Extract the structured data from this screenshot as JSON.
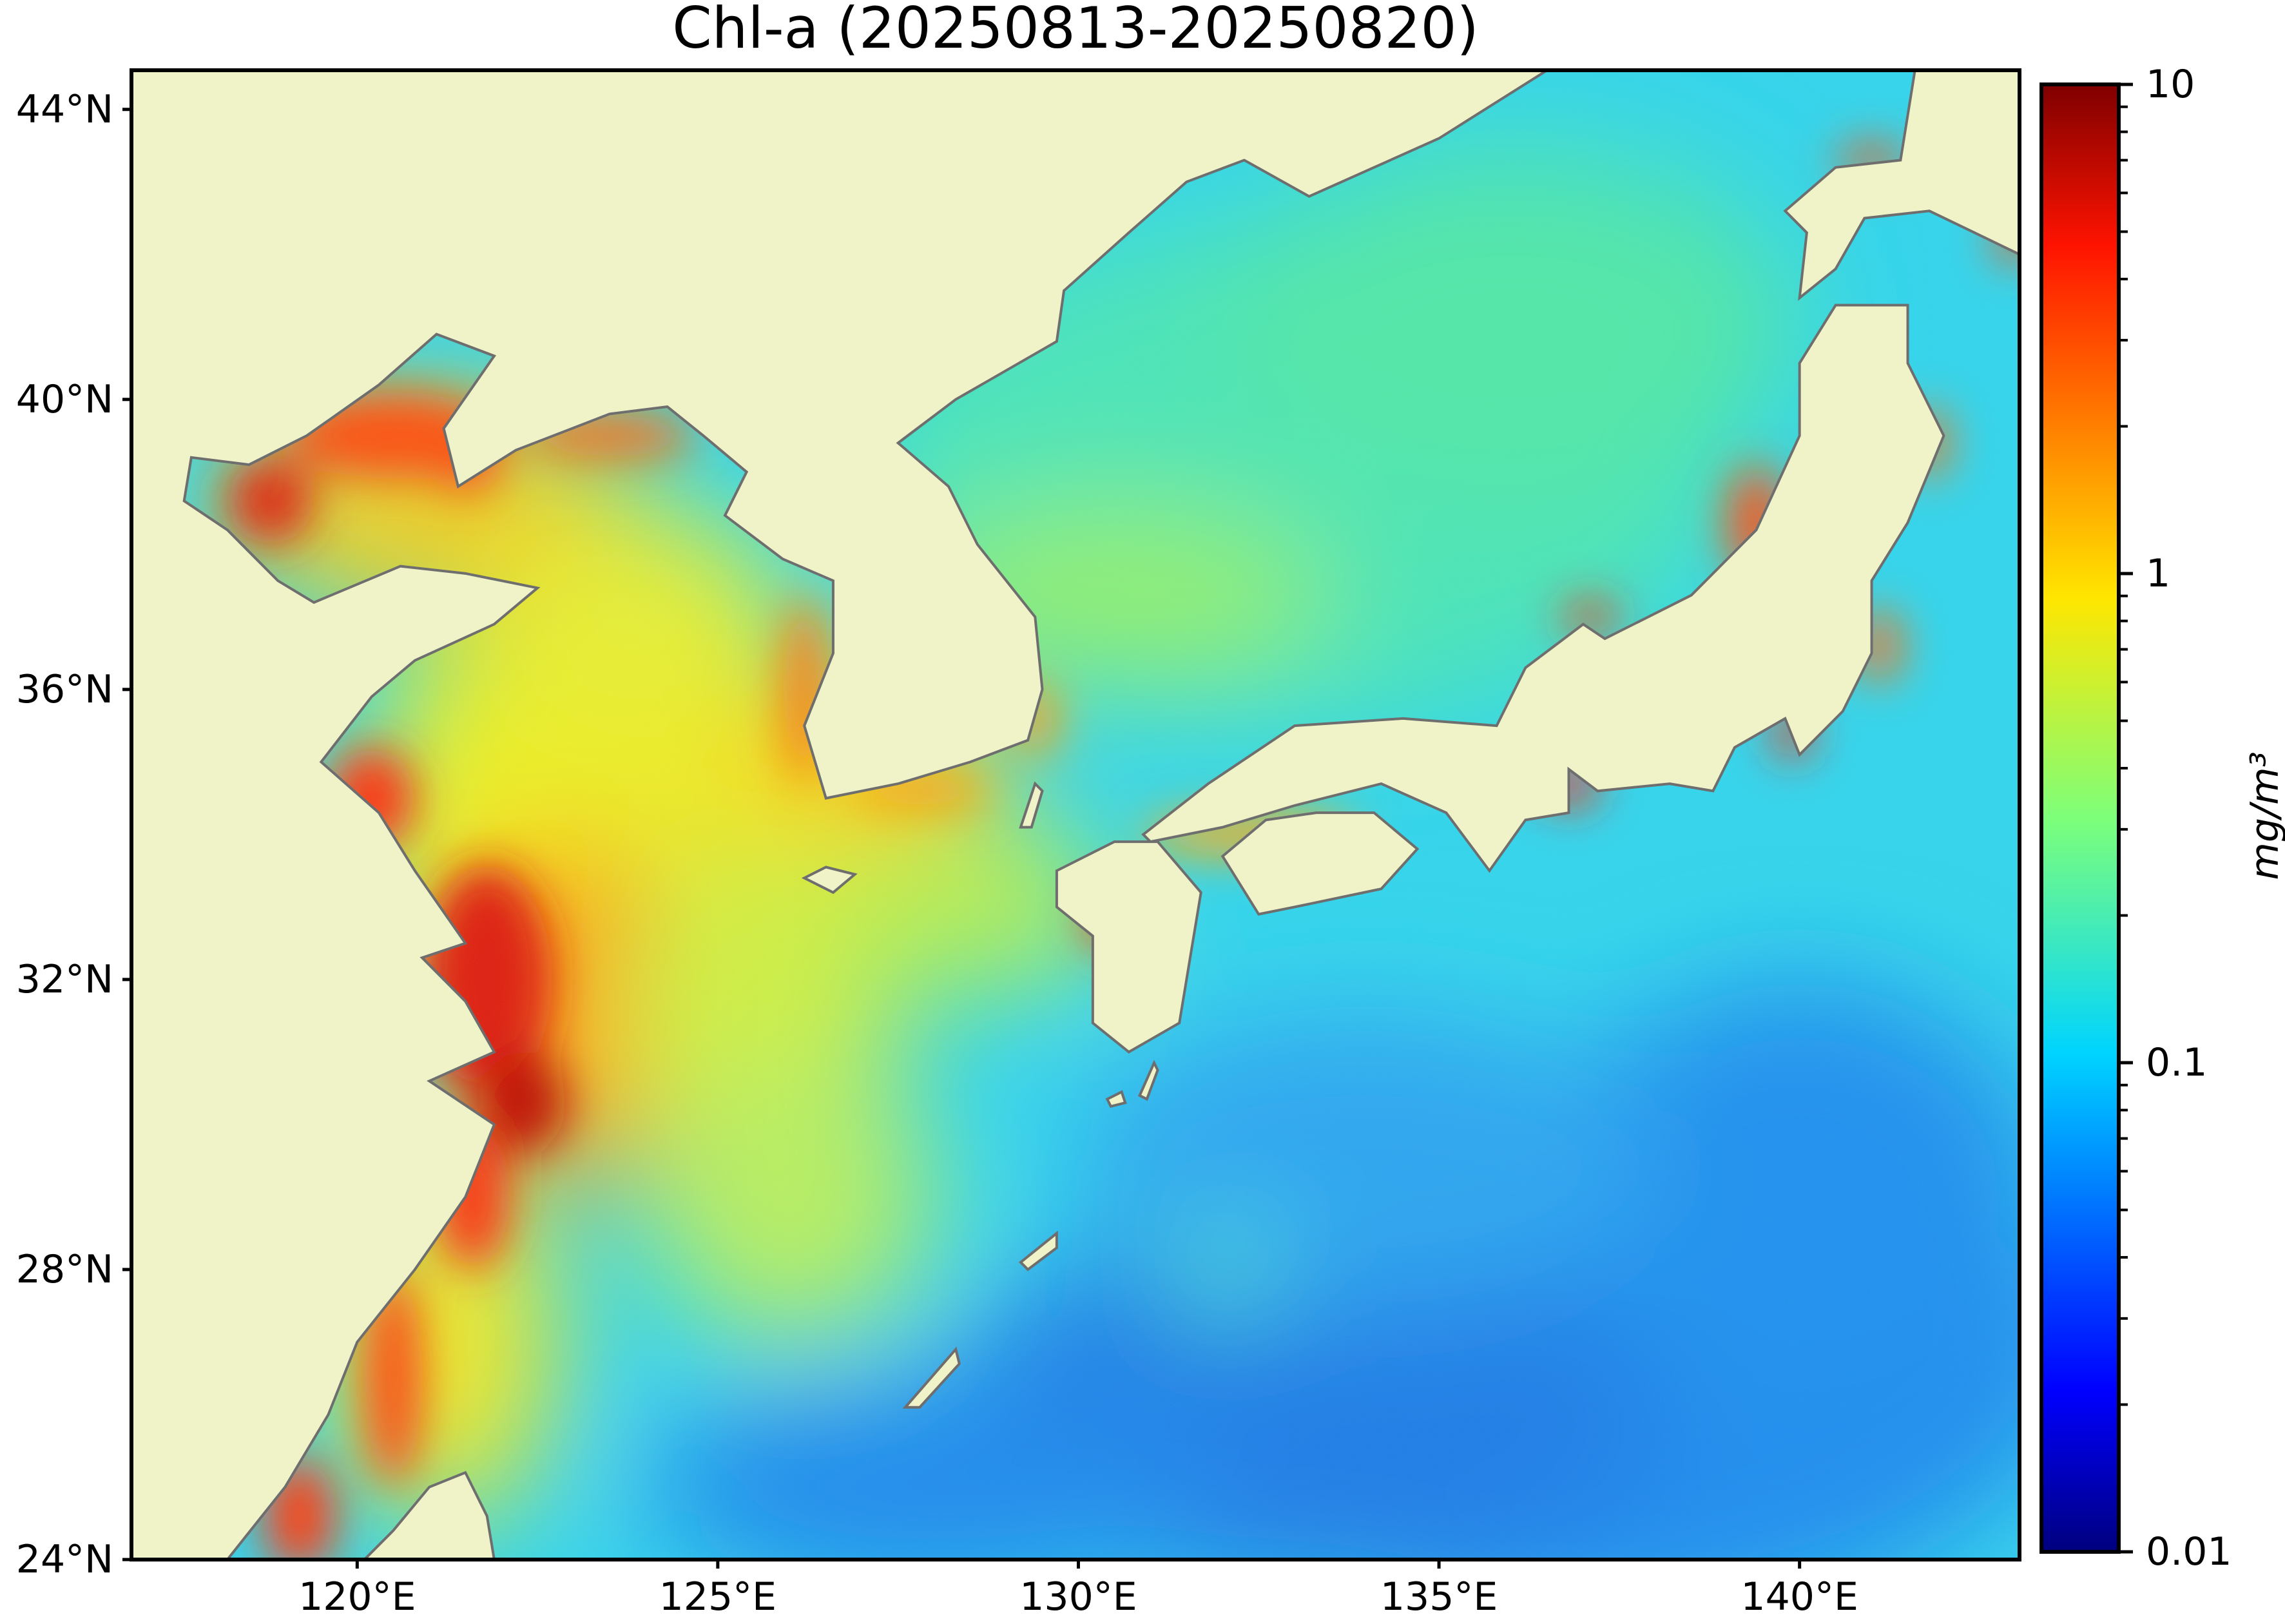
{
  "title": "Chl-a (20250813-20250820)",
  "map": {
    "lon_range": [
      116.87,
      143.05
    ],
    "lat_range": [
      24,
      44.54
    ],
    "land_color": "#f0f2c8",
    "coastline_color": "#6e6e6e",
    "lat_ticks": [
      {
        "value": 44,
        "label": "44°N"
      },
      {
        "value": 40,
        "label": "40°N"
      },
      {
        "value": 36,
        "label": "36°N"
      },
      {
        "value": 32,
        "label": "32°N"
      },
      {
        "value": 28,
        "label": "28°N"
      },
      {
        "value": 24,
        "label": "24°N"
      }
    ],
    "lon_ticks": [
      {
        "value": 120,
        "label": "120°E"
      },
      {
        "value": 125,
        "label": "125°E"
      },
      {
        "value": 130,
        "label": "130°E"
      },
      {
        "value": 135,
        "label": "135°E"
      },
      {
        "value": 140,
        "label": "140°E"
      }
    ]
  },
  "colorbar": {
    "colormap": "jet",
    "scale": "log",
    "range": [
      0.01,
      10
    ],
    "unit_label": "mg/m³",
    "ticks": [
      {
        "value": 10,
        "label": "10"
      },
      {
        "value": 1,
        "label": "1"
      },
      {
        "value": 0.1,
        "label": "0.1"
      },
      {
        "value": 0.01,
        "label": "0.01"
      }
    ]
  }
}
